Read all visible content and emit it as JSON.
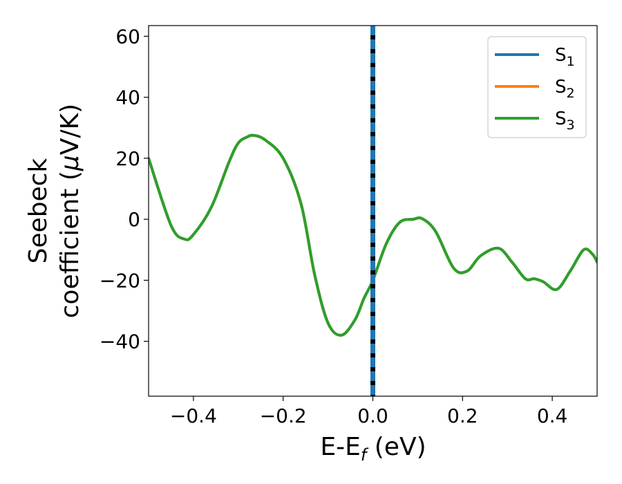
{
  "chart_data": {
    "type": "line",
    "xlabel": {
      "main": "E-E",
      "sub": "f",
      "unit": " (eV)"
    },
    "ylabel": {
      "line1": "Seebeck",
      "line2_pre": "coefficient  (",
      "line2_mu": "μ",
      "line2_post": "V/K)"
    },
    "xlim": [
      -0.5,
      0.5
    ],
    "ylim": [
      -58,
      63.5
    ],
    "xticks": [
      {
        "value": -0.4,
        "label": "−0.4"
      },
      {
        "value": -0.2,
        "label": "−0.2"
      },
      {
        "value": 0.0,
        "label": "0.0"
      },
      {
        "value": 0.2,
        "label": "0.2"
      },
      {
        "value": 0.4,
        "label": "0.4"
      }
    ],
    "yticks": [
      {
        "value": -40,
        "label": "−40"
      },
      {
        "value": -20,
        "label": "−20"
      },
      {
        "value": 0,
        "label": "0"
      },
      {
        "value": 20,
        "label": "20"
      },
      {
        "value": 40,
        "label": "40"
      },
      {
        "value": 60,
        "label": "60"
      }
    ],
    "grid": false,
    "legend_position": "top-right",
    "x": [
      -0.5,
      -0.45,
      -0.42,
      -0.4,
      -0.36,
      -0.32,
      -0.3,
      -0.28,
      -0.265,
      -0.24,
      -0.2,
      -0.16,
      -0.13,
      -0.1,
      -0.07,
      -0.04,
      -0.02,
      0.0,
      0.03,
      0.06,
      0.09,
      0.11,
      0.14,
      0.18,
      0.21,
      0.24,
      0.28,
      0.31,
      0.34,
      0.36,
      0.38,
      0.41,
      0.44,
      0.47,
      0.49,
      0.5
    ],
    "series": [
      {
        "name": "S",
        "sub": "1",
        "color": "#1f77b4",
        "y": [
          20,
          -2,
          -6.5,
          -5,
          4,
          19,
          25,
          27,
          27.5,
          26,
          20,
          5,
          -18,
          -34,
          -38,
          -33,
          -26,
          -20,
          -8,
          -1,
          0,
          0.2,
          -4,
          -16,
          -17,
          -12,
          -9.5,
          -14,
          -19.5,
          -19.5,
          -20.5,
          -23,
          -17,
          -10,
          -11.5,
          -14
        ]
      },
      {
        "name": "S",
        "sub": "2",
        "color": "#ff7f0e",
        "y": [
          20,
          -2,
          -6.5,
          -5,
          4,
          19,
          25,
          27,
          27.5,
          26,
          20,
          5,
          -18,
          -34,
          -38,
          -33,
          -26,
          -20,
          -8,
          -1,
          0,
          0.2,
          -4,
          -16,
          -17,
          -12,
          -9.5,
          -14,
          -19.5,
          -19.5,
          -20.5,
          -23,
          -17,
          -10,
          -11.5,
          -14
        ]
      },
      {
        "name": "S",
        "sub": "3",
        "color": "#2ca02c",
        "y": [
          20,
          -2,
          -6.5,
          -5,
          4,
          19,
          25,
          27,
          27.5,
          26,
          20,
          5,
          -18,
          -34,
          -38,
          -33,
          -26,
          -20,
          -8,
          -1,
          0,
          0.2,
          -4,
          -16,
          -17,
          -12,
          -9.5,
          -14,
          -19.5,
          -19.5,
          -20.5,
          -23,
          -17,
          -10,
          -11.5,
          -14
        ]
      }
    ],
    "vline": {
      "x": 0.0,
      "color_a": "#000000",
      "color_b": "#1f77b4"
    }
  }
}
